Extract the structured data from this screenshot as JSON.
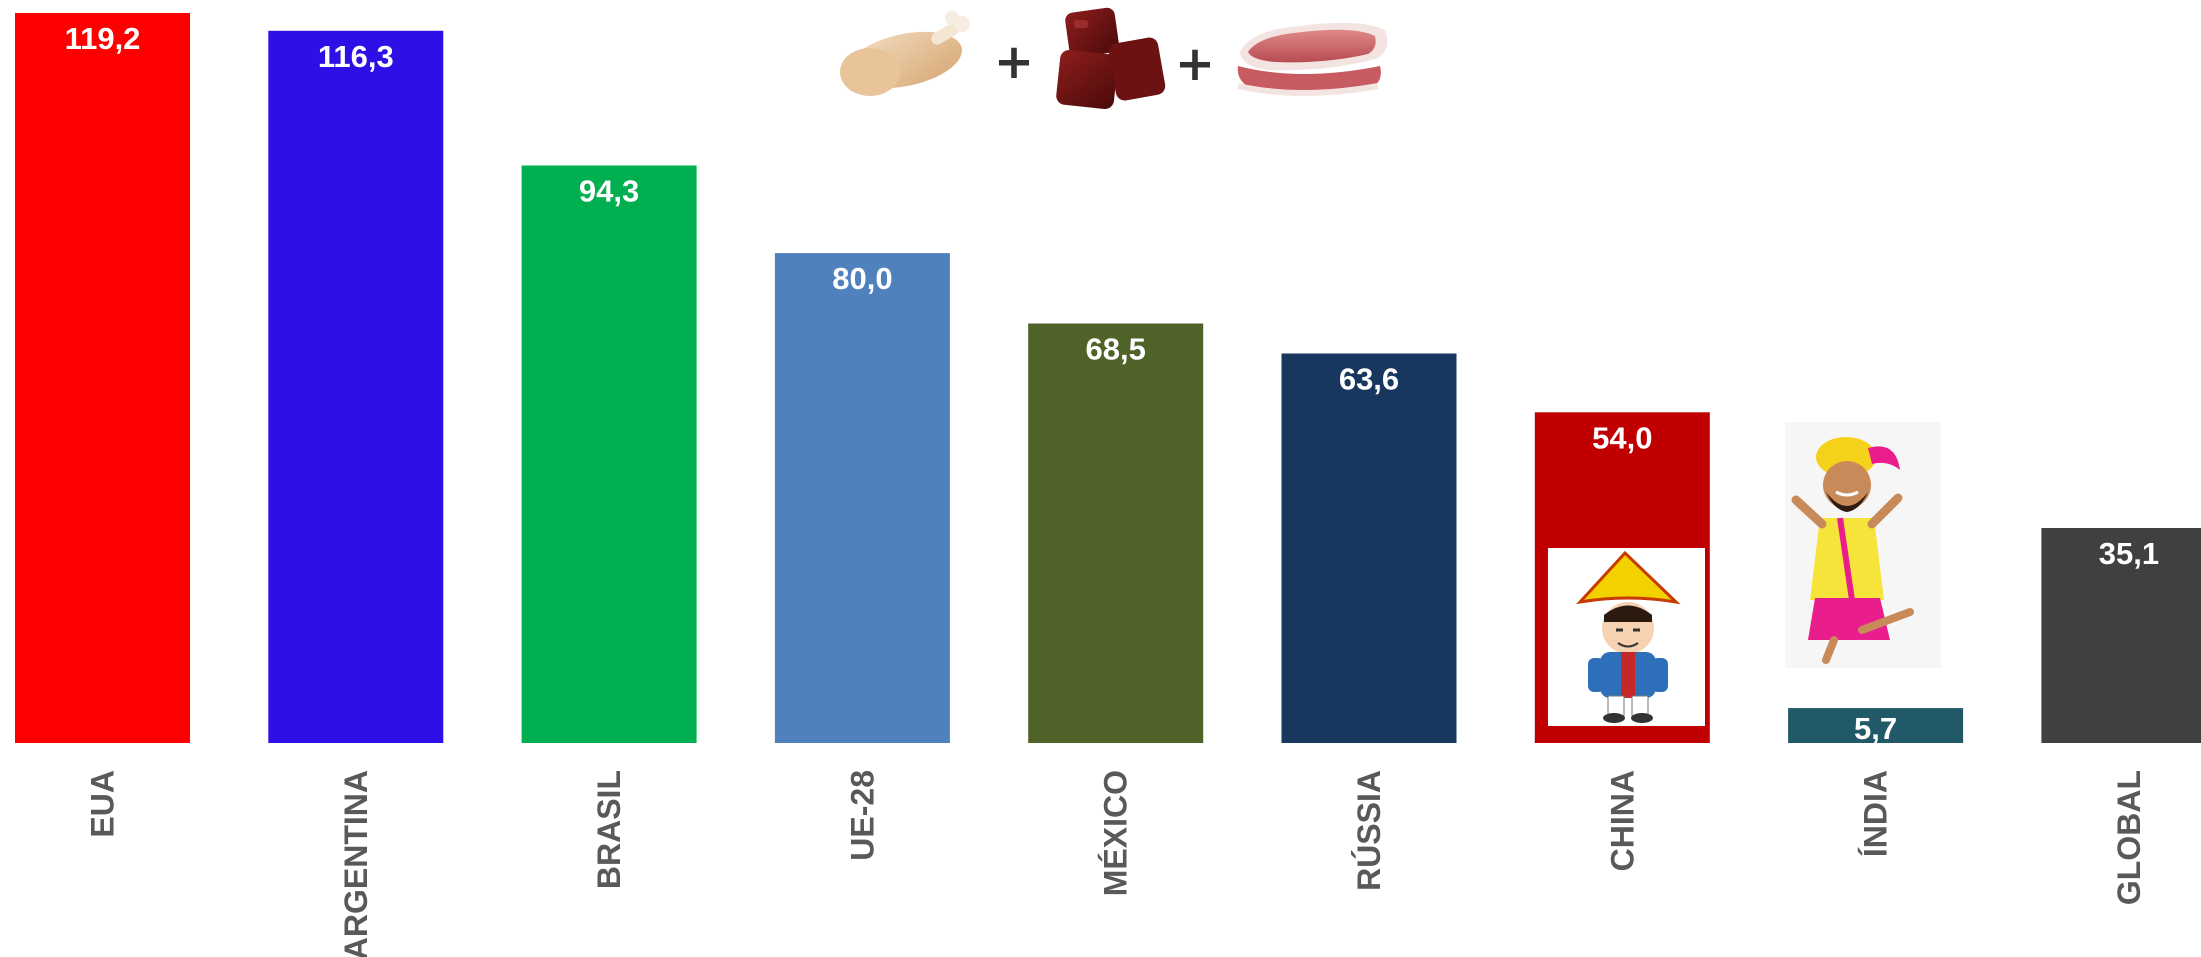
{
  "chart_data": {
    "type": "bar",
    "categories": [
      "EUA",
      "ARGENTINA",
      "BRASIL",
      "UE-28",
      "MÉXICO",
      "RÚSSIA",
      "CHINA",
      "ÍNDIA",
      "GLOBAL"
    ],
    "values": [
      119.2,
      116.3,
      94.3,
      80.0,
      68.5,
      63.6,
      54.0,
      5.7,
      35.1
    ],
    "data_labels": [
      "119,2",
      "116,3",
      "94,3",
      "80,0",
      "68,5",
      "63,6",
      "54,0",
      "5,7",
      "35,1"
    ],
    "colors": [
      "#ff0000",
      "#2e10e6",
      "#00b050",
      "#4f81bd",
      "#4f6228",
      "#17375e",
      "#c00000",
      "#215968",
      "#404040"
    ],
    "title": "",
    "xlabel": "",
    "ylabel": "",
    "ylim": [
      0,
      119.2
    ],
    "grid": false,
    "legend": "none"
  },
  "header": {
    "icons": [
      "chicken-drumstick-icon",
      "beef-cubes-icon",
      "pork-steak-icon"
    ],
    "plus_signs": [
      "+",
      "+"
    ]
  },
  "illustrations": {
    "china": "chinese-character-icon",
    "india": "indian-dancer-icon"
  }
}
